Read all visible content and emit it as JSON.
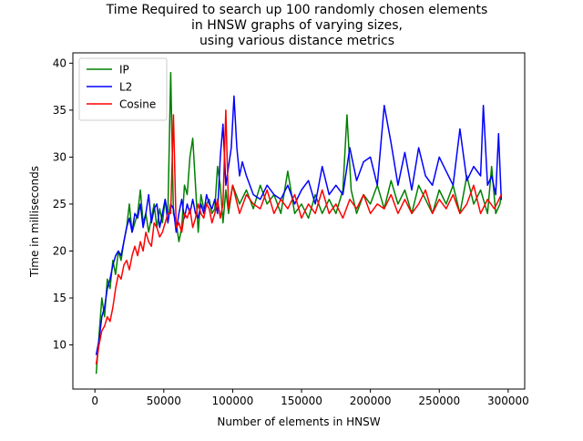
{
  "chart_data": {
    "type": "line",
    "title_lines": [
      "Time Required to search up 100 randomly chosen elements",
      "in HNSW graphs of varying sizes,",
      "using various distance metrics"
    ],
    "xlabel": "Number of elements in HNSW",
    "ylabel": "Time in milliseconds",
    "xlim": [
      -16000,
      312000
    ],
    "ylim": [
      5.3,
      41.1
    ],
    "x_ticks": [
      0,
      50000,
      100000,
      150000,
      200000,
      250000,
      300000
    ],
    "y_ticks": [
      10,
      15,
      20,
      25,
      30,
      35,
      40
    ],
    "grid": false,
    "legend_position": "top-left",
    "series": [
      {
        "name": "IP",
        "color": "#008000",
        "x": [
          1000,
          3000,
          5000,
          7000,
          9000,
          11000,
          13000,
          15000,
          17000,
          19000,
          21000,
          23000,
          25000,
          27000,
          29000,
          31000,
          33000,
          35000,
          37000,
          39000,
          41000,
          43000,
          45000,
          47000,
          49000,
          51000,
          53000,
          55000,
          57000,
          59000,
          61000,
          63000,
          65000,
          67000,
          69000,
          71000,
          73000,
          75000,
          77000,
          79000,
          81000,
          83000,
          85000,
          87000,
          89000,
          91000,
          93000,
          95000,
          97000,
          100000,
          105000,
          110000,
          115000,
          120000,
          125000,
          130000,
          135000,
          140000,
          145000,
          150000,
          155000,
          160000,
          165000,
          170000,
          175000,
          180000,
          183000,
          186000,
          190000,
          195000,
          200000,
          205000,
          210000,
          215000,
          220000,
          225000,
          230000,
          235000,
          240000,
          245000,
          250000,
          255000,
          260000,
          265000,
          270000,
          275000,
          280000,
          285000,
          288000,
          291000,
          294000,
          295000
        ],
        "values": [
          7.0,
          11.0,
          15.0,
          13.0,
          17.0,
          16.0,
          19.0,
          17.5,
          20.0,
          19.0,
          21.0,
          22.5,
          25.0,
          22.0,
          23.0,
          24.0,
          26.5,
          23.0,
          24.0,
          22.0,
          23.5,
          25.0,
          22.5,
          24.5,
          23.0,
          25.5,
          24.0,
          39.0,
          24.0,
          23.0,
          21.0,
          22.5,
          27.0,
          26.0,
          30.0,
          32.0,
          27.0,
          22.0,
          26.0,
          24.5,
          25.0,
          25.5,
          24.0,
          24.5,
          29.0,
          27.0,
          23.0,
          26.5,
          24.0,
          27.0,
          25.0,
          26.5,
          24.5,
          27.0,
          25.0,
          26.0,
          24.0,
          28.5,
          24.0,
          25.0,
          23.5,
          26.0,
          24.0,
          25.5,
          24.0,
          26.5,
          34.5,
          26.5,
          24.0,
          26.0,
          25.0,
          27.0,
          24.5,
          27.5,
          25.0,
          26.5,
          24.0,
          27.0,
          25.5,
          24.0,
          26.5,
          25.0,
          27.0,
          24.0,
          28.0,
          25.0,
          26.5,
          24.0,
          29.0,
          24.0,
          25.0,
          26.0
        ]
      },
      {
        "name": "L2",
        "color": "#0000ff",
        "x": [
          1000,
          3000,
          5000,
          7000,
          9000,
          11000,
          13000,
          15000,
          17000,
          19000,
          21000,
          23000,
          25000,
          27000,
          29000,
          31000,
          33000,
          35000,
          37000,
          39000,
          41000,
          43000,
          45000,
          47000,
          49000,
          51000,
          53000,
          55000,
          57000,
          59000,
          61000,
          63000,
          65000,
          67000,
          69000,
          71000,
          73000,
          75000,
          77000,
          79000,
          81000,
          83000,
          85000,
          87000,
          89000,
          91000,
          93000,
          95000,
          97000,
          99000,
          101000,
          103000,
          105000,
          107000,
          110000,
          115000,
          120000,
          125000,
          130000,
          135000,
          140000,
          145000,
          150000,
          155000,
          160000,
          165000,
          170000,
          175000,
          180000,
          185000,
          190000,
          195000,
          200000,
          205000,
          210000,
          215000,
          220000,
          225000,
          230000,
          235000,
          240000,
          245000,
          250000,
          255000,
          260000,
          265000,
          270000,
          275000,
          280000,
          282000,
          285000,
          288000,
          291000,
          293000,
          295000
        ],
        "values": [
          9.0,
          10.5,
          13.0,
          14.0,
          16.0,
          17.0,
          18.5,
          19.5,
          20.0,
          19.5,
          21.0,
          22.5,
          23.5,
          22.0,
          24.0,
          23.5,
          25.0,
          22.5,
          24.0,
          26.0,
          23.0,
          24.5,
          25.0,
          22.5,
          24.0,
          25.5,
          23.0,
          25.0,
          24.5,
          22.0,
          24.0,
          25.5,
          23.5,
          25.0,
          24.0,
          25.5,
          24.0,
          23.5,
          25.0,
          24.0,
          26.0,
          25.0,
          24.5,
          25.5,
          24.0,
          30.0,
          33.5,
          27.0,
          29.0,
          31.0,
          36.5,
          31.0,
          28.0,
          29.5,
          28.0,
          26.0,
          25.5,
          27.0,
          26.0,
          25.5,
          27.0,
          25.0,
          26.5,
          27.5,
          25.0,
          29.0,
          26.0,
          27.0,
          26.0,
          31.0,
          27.5,
          29.5,
          30.0,
          27.0,
          35.5,
          31.5,
          27.0,
          30.5,
          26.5,
          31.0,
          28.0,
          27.0,
          30.0,
          28.5,
          27.0,
          33.0,
          27.5,
          29.0,
          28.0,
          35.5,
          27.0,
          28.0,
          26.0,
          32.5,
          25.5
        ]
      },
      {
        "name": "Cosine",
        "color": "#ff0000",
        "x": [
          1000,
          3000,
          5000,
          7000,
          9000,
          11000,
          13000,
          15000,
          17000,
          19000,
          21000,
          23000,
          25000,
          27000,
          29000,
          31000,
          33000,
          35000,
          37000,
          39000,
          41000,
          43000,
          45000,
          47000,
          49000,
          51000,
          53000,
          55000,
          57000,
          59000,
          61000,
          63000,
          65000,
          67000,
          69000,
          71000,
          73000,
          75000,
          77000,
          79000,
          81000,
          83000,
          85000,
          87000,
          89000,
          91000,
          93000,
          95000,
          97000,
          100000,
          105000,
          110000,
          115000,
          120000,
          125000,
          130000,
          135000,
          140000,
          145000,
          150000,
          155000,
          160000,
          165000,
          170000,
          175000,
          180000,
          185000,
          190000,
          195000,
          200000,
          205000,
          210000,
          215000,
          220000,
          225000,
          230000,
          235000,
          240000,
          245000,
          250000,
          255000,
          260000,
          265000,
          270000,
          275000,
          280000,
          285000,
          290000,
          295000
        ],
        "values": [
          8.0,
          10.0,
          11.5,
          12.0,
          13.0,
          12.5,
          14.0,
          16.0,
          17.5,
          17.0,
          18.5,
          19.0,
          18.0,
          19.5,
          20.5,
          19.5,
          21.0,
          20.0,
          22.0,
          21.0,
          20.5,
          23.0,
          22.5,
          21.5,
          22.0,
          23.0,
          24.0,
          24.0,
          34.5,
          22.5,
          23.0,
          22.0,
          24.0,
          23.5,
          24.5,
          22.5,
          23.5,
          25.0,
          24.0,
          23.5,
          25.0,
          24.5,
          23.0,
          24.0,
          25.5,
          23.5,
          25.0,
          35.0,
          24.5,
          27.0,
          24.0,
          26.0,
          25.0,
          24.5,
          26.5,
          24.0,
          25.5,
          24.5,
          26.0,
          23.5,
          25.0,
          24.0,
          26.5,
          24.0,
          25.0,
          23.5,
          25.5,
          24.5,
          26.0,
          24.0,
          25.0,
          24.5,
          26.0,
          24.0,
          25.5,
          24.0,
          25.0,
          26.5,
          24.0,
          25.5,
          24.5,
          26.0,
          24.0,
          25.0,
          27.0,
          24.0,
          25.5,
          24.5,
          26.0
        ]
      }
    ]
  }
}
